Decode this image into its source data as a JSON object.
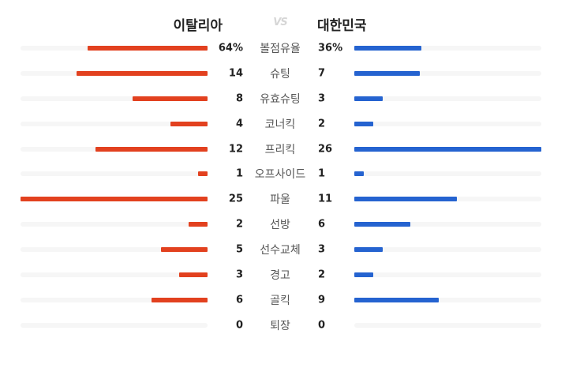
{
  "header": {
    "home_team": "이탈리아",
    "vs": "VS",
    "away_team": "대한민국"
  },
  "colors": {
    "home_bar": "#e2411f",
    "away_bar": "#2563d0",
    "track": "#f6f6f6"
  },
  "stats": [
    {
      "label": "볼점유율",
      "home": "64%",
      "away": "36%",
      "home_value": 64,
      "away_value": 36,
      "home_fraction": 0.64,
      "away_fraction": 0.36
    },
    {
      "label": "슈팅",
      "home": "14",
      "away": "7",
      "home_value": 14,
      "away_value": 7,
      "home_fraction": 0.7,
      "away_fraction": 0.35
    },
    {
      "label": "유효슈팅",
      "home": "8",
      "away": "3",
      "home_value": 8,
      "away_value": 3,
      "home_fraction": 0.4,
      "away_fraction": 0.15
    },
    {
      "label": "코너킥",
      "home": "4",
      "away": "2",
      "home_value": 4,
      "away_value": 2,
      "home_fraction": 0.2,
      "away_fraction": 0.1
    },
    {
      "label": "프리킥",
      "home": "12",
      "away": "26",
      "home_value": 12,
      "away_value": 26,
      "home_fraction": 0.6,
      "away_fraction": 1.0
    },
    {
      "label": "오프사이드",
      "home": "1",
      "away": "1",
      "home_value": 1,
      "away_value": 1,
      "home_fraction": 0.05,
      "away_fraction": 0.05
    },
    {
      "label": "파울",
      "home": "25",
      "away": "11",
      "home_value": 25,
      "away_value": 11,
      "home_fraction": 1.0,
      "away_fraction": 0.55
    },
    {
      "label": "선방",
      "home": "2",
      "away": "6",
      "home_value": 2,
      "away_value": 6,
      "home_fraction": 0.1,
      "away_fraction": 0.3
    },
    {
      "label": "선수교체",
      "home": "5",
      "away": "3",
      "home_value": 5,
      "away_value": 3,
      "home_fraction": 0.25,
      "away_fraction": 0.15
    },
    {
      "label": "경고",
      "home": "3",
      "away": "2",
      "home_value": 3,
      "away_value": 2,
      "home_fraction": 0.15,
      "away_fraction": 0.1
    },
    {
      "label": "골킥",
      "home": "6",
      "away": "9",
      "home_value": 6,
      "away_value": 9,
      "home_fraction": 0.3,
      "away_fraction": 0.45
    },
    {
      "label": "퇴장",
      "home": "0",
      "away": "0",
      "home_value": 0,
      "away_value": 0,
      "home_fraction": 0,
      "away_fraction": 0
    }
  ]
}
